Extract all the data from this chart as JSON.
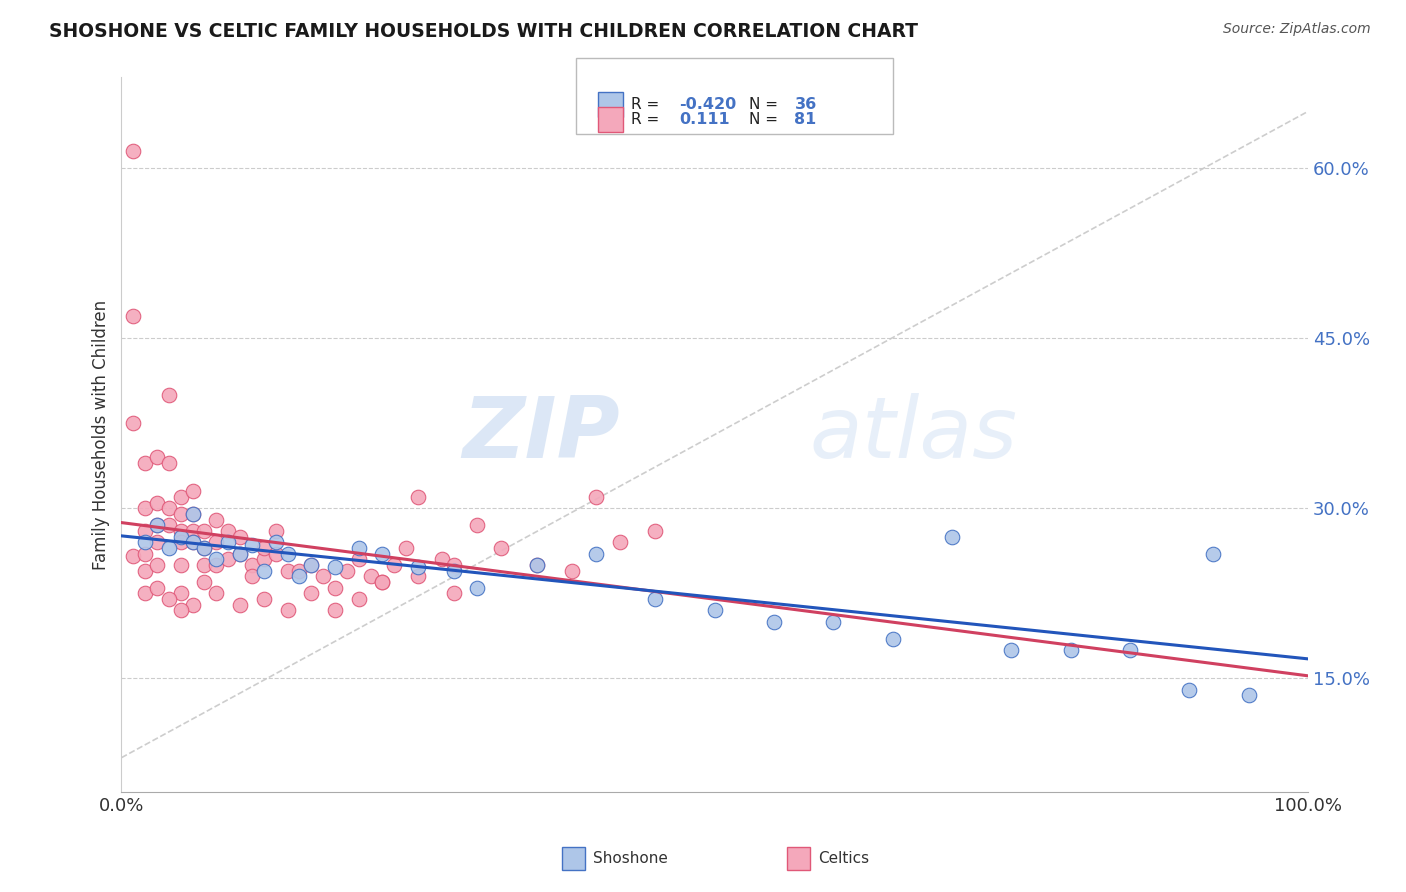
{
  "title": "SHOSHONE VS CELTIC FAMILY HOUSEHOLDS WITH CHILDREN CORRELATION CHART",
  "source": "Source: ZipAtlas.com",
  "ylabel": "Family Households with Children",
  "watermark": "ZIPatlas",
  "yticks": [
    0.15,
    0.3,
    0.45,
    0.6
  ],
  "ytick_labels": [
    "15.0%",
    "30.0%",
    "45.0%",
    "60.0%"
  ],
  "xlim": [
    0.0,
    1.0
  ],
  "ylim": [
    0.05,
    0.68
  ],
  "shoshone_color": "#aec6e8",
  "celtics_color": "#f4a8bb",
  "shoshone_edge_color": "#4472c4",
  "celtics_edge_color": "#e05878",
  "shoshone_line_color": "#2255bb",
  "celtics_line_color": "#d04060",
  "ref_line_color": "#c8c8c8",
  "shoshone_x": [
    0.02,
    0.03,
    0.04,
    0.05,
    0.06,
    0.06,
    0.07,
    0.08,
    0.09,
    0.1,
    0.11,
    0.12,
    0.13,
    0.14,
    0.15,
    0.16,
    0.18,
    0.2,
    0.22,
    0.25,
    0.28,
    0.3,
    0.35,
    0.4,
    0.45,
    0.5,
    0.55,
    0.6,
    0.65,
    0.7,
    0.75,
    0.8,
    0.85,
    0.9,
    0.92,
    0.95
  ],
  "shoshone_y": [
    0.27,
    0.285,
    0.265,
    0.275,
    0.27,
    0.295,
    0.265,
    0.255,
    0.27,
    0.26,
    0.268,
    0.245,
    0.27,
    0.26,
    0.24,
    0.25,
    0.248,
    0.265,
    0.26,
    0.248,
    0.245,
    0.23,
    0.25,
    0.26,
    0.22,
    0.21,
    0.2,
    0.2,
    0.185,
    0.275,
    0.175,
    0.175,
    0.175,
    0.14,
    0.26,
    0.135
  ],
  "celtics_x": [
    0.01,
    0.01,
    0.01,
    0.01,
    0.02,
    0.02,
    0.02,
    0.02,
    0.02,
    0.02,
    0.03,
    0.03,
    0.03,
    0.03,
    0.03,
    0.04,
    0.04,
    0.04,
    0.04,
    0.05,
    0.05,
    0.05,
    0.05,
    0.05,
    0.05,
    0.06,
    0.06,
    0.06,
    0.06,
    0.07,
    0.07,
    0.07,
    0.07,
    0.08,
    0.08,
    0.08,
    0.09,
    0.09,
    0.1,
    0.1,
    0.11,
    0.11,
    0.12,
    0.12,
    0.13,
    0.13,
    0.14,
    0.15,
    0.16,
    0.17,
    0.18,
    0.19,
    0.2,
    0.21,
    0.22,
    0.23,
    0.24,
    0.25,
    0.27,
    0.28,
    0.3,
    0.32,
    0.35,
    0.38,
    0.4,
    0.42,
    0.45,
    0.2,
    0.22,
    0.25,
    0.28,
    0.18,
    0.16,
    0.14,
    0.12,
    0.1,
    0.08,
    0.06,
    0.05,
    0.04,
    0.03
  ],
  "celtics_y": [
    0.615,
    0.47,
    0.375,
    0.258,
    0.3,
    0.34,
    0.26,
    0.28,
    0.245,
    0.225,
    0.345,
    0.285,
    0.305,
    0.27,
    0.25,
    0.34,
    0.285,
    0.4,
    0.3,
    0.28,
    0.295,
    0.31,
    0.27,
    0.25,
    0.225,
    0.295,
    0.28,
    0.315,
    0.27,
    0.28,
    0.265,
    0.25,
    0.235,
    0.29,
    0.27,
    0.25,
    0.28,
    0.255,
    0.26,
    0.275,
    0.25,
    0.24,
    0.255,
    0.265,
    0.28,
    0.26,
    0.245,
    0.245,
    0.25,
    0.24,
    0.23,
    0.245,
    0.255,
    0.24,
    0.235,
    0.25,
    0.265,
    0.31,
    0.255,
    0.25,
    0.285,
    0.265,
    0.25,
    0.245,
    0.31,
    0.27,
    0.28,
    0.22,
    0.235,
    0.24,
    0.225,
    0.21,
    0.225,
    0.21,
    0.22,
    0.215,
    0.225,
    0.215,
    0.21,
    0.22,
    0.23
  ]
}
